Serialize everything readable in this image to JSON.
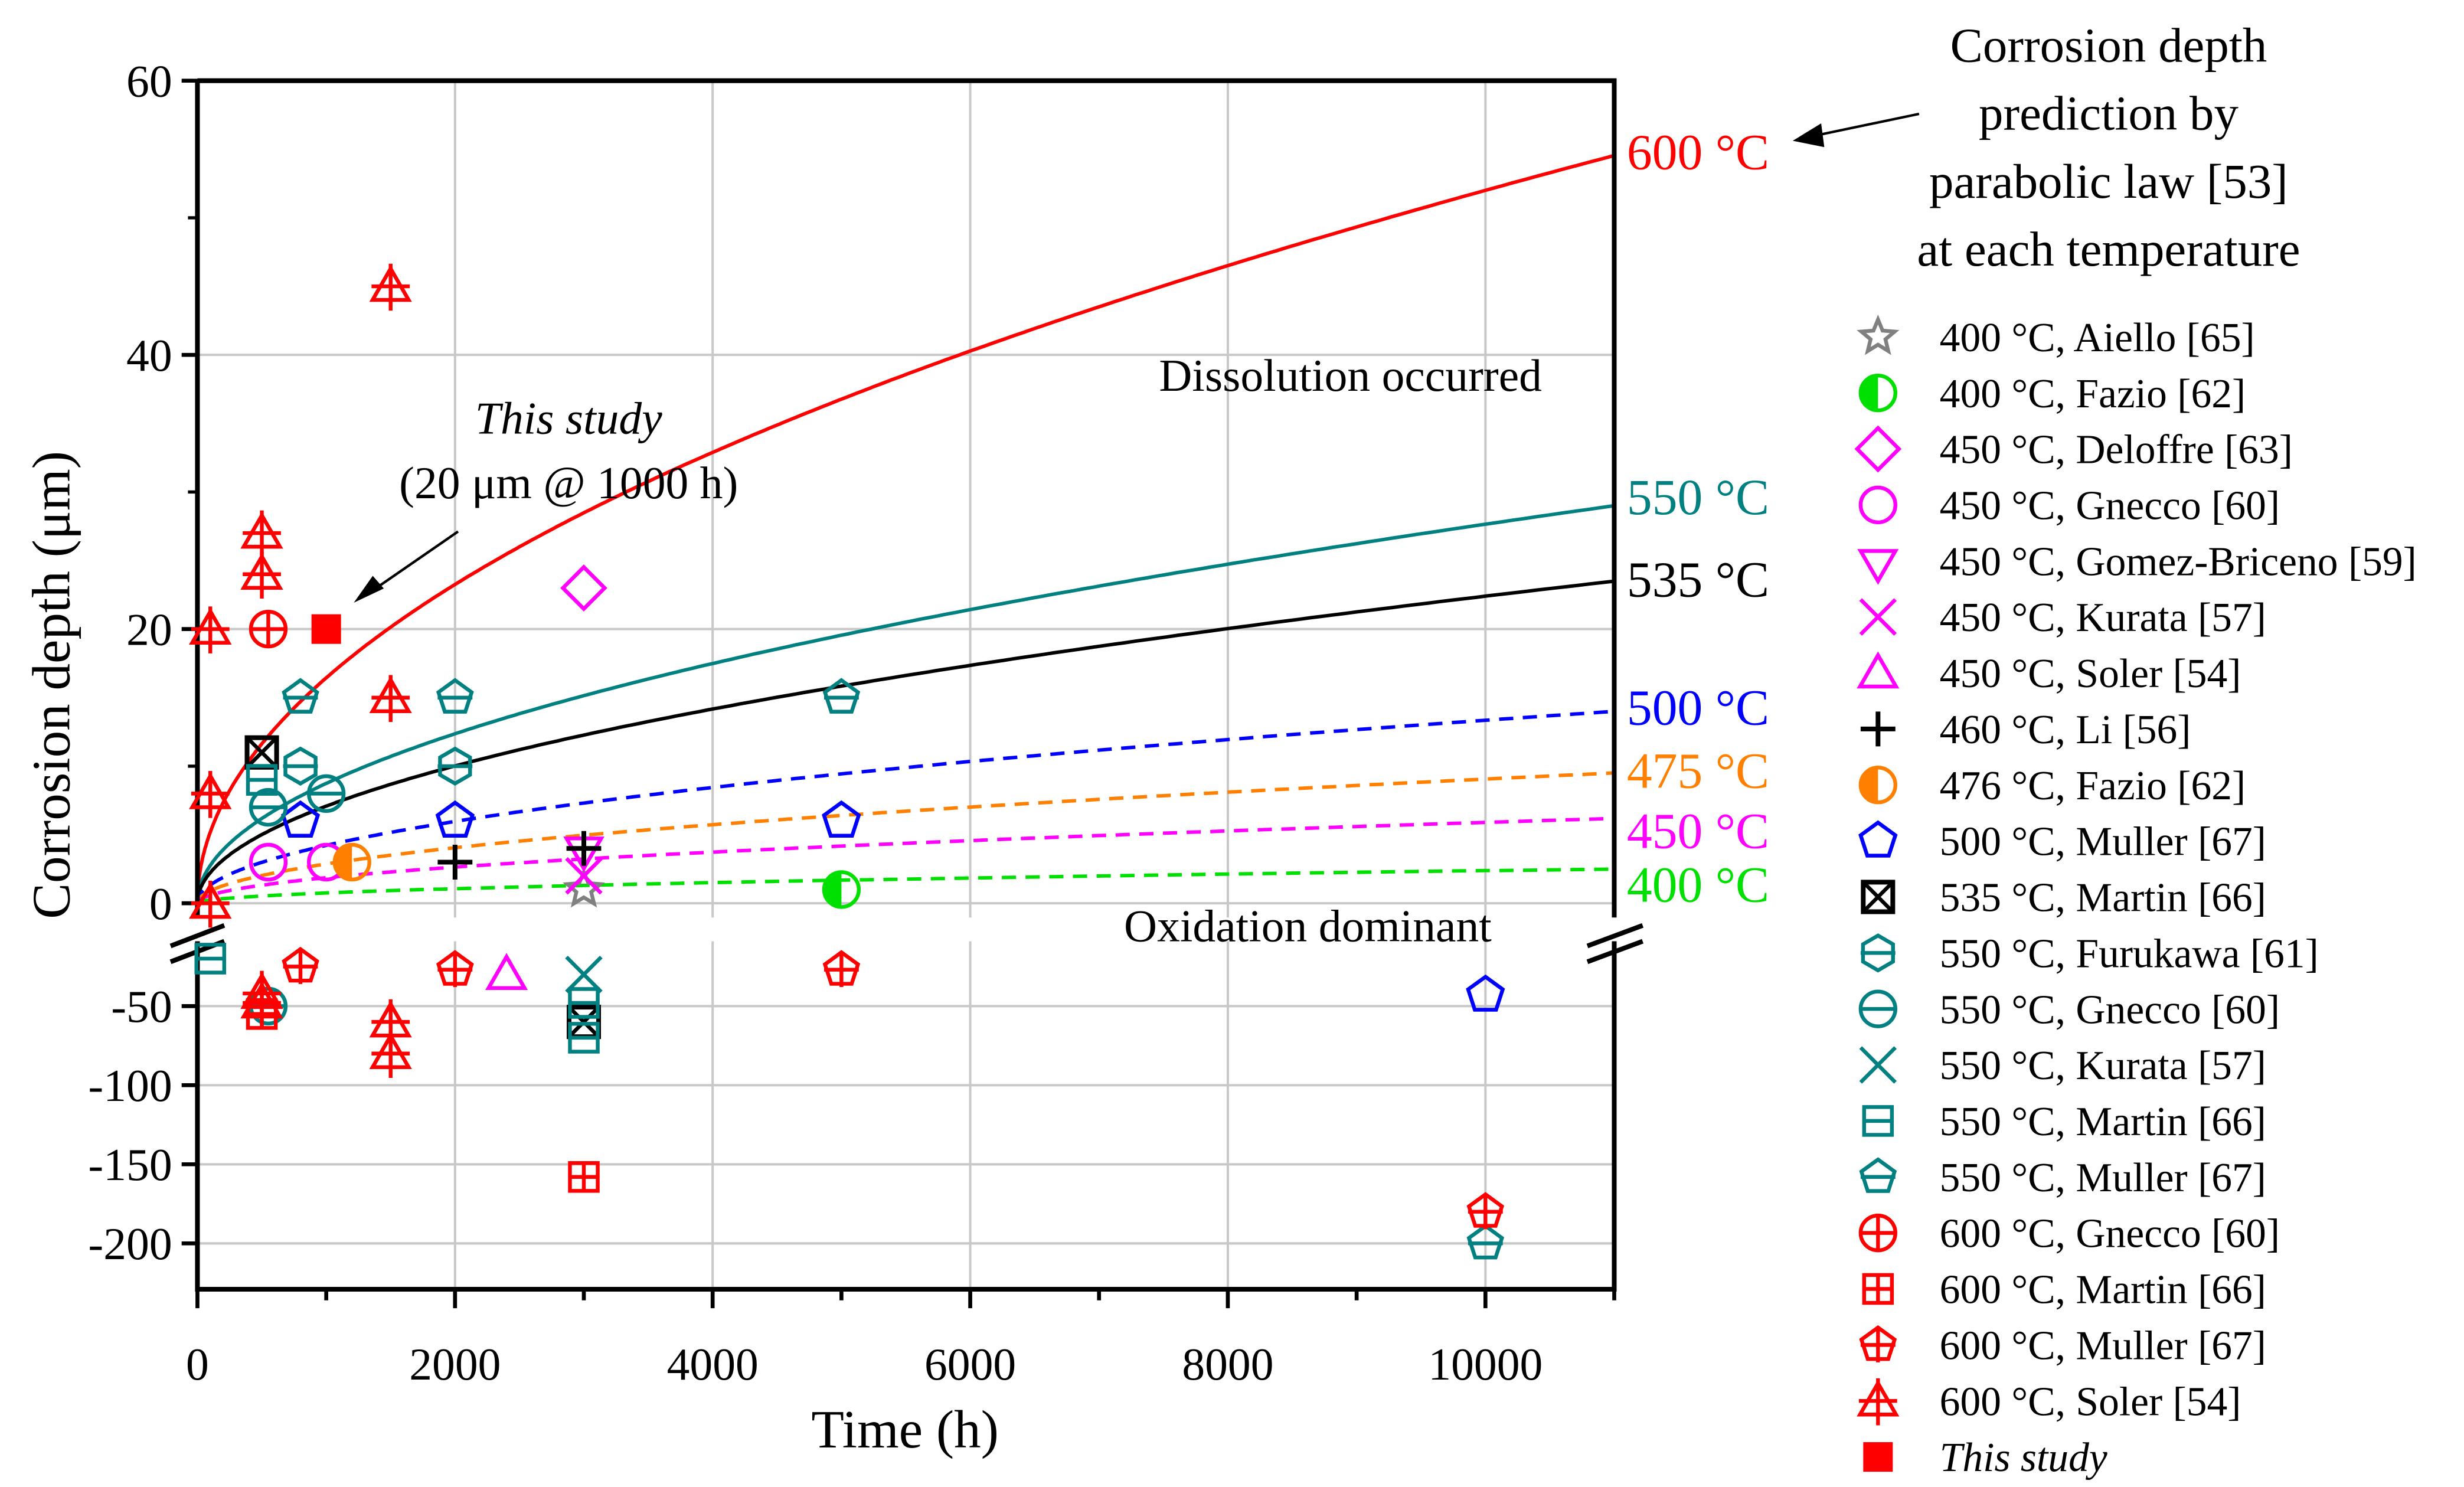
{
  "chart_data": {
    "type": "scatter",
    "xlabel": "Time (h)",
    "ylabel": "Corrosion depth (μm)",
    "xlim": [
      0,
      11000
    ],
    "xticks": [
      "0",
      "2000",
      "4000",
      "6000",
      "8000",
      "10000"
    ],
    "ylim_upper": [
      0,
      60
    ],
    "yticks_upper": [
      "0",
      "20",
      "40",
      "60"
    ],
    "ylim_lower": [
      -228,
      -9
    ],
    "yticks_lower": [
      "-50",
      "-100",
      "-150",
      "-200"
    ],
    "grid": true,
    "legend_placement": "right",
    "prediction_title": [
      "Corrosion depth",
      "prediction by",
      "parabolic law [53]",
      "at each temperature"
    ],
    "curves": [
      {
        "label": "600 °C",
        "k": 0.52,
        "color": "#ff0000",
        "dashed": false
      },
      {
        "label": "550 °C",
        "k": 0.2765,
        "color": "#008080",
        "dashed": false
      },
      {
        "label": "535 °C",
        "k": 0.224,
        "color": "#000000",
        "dashed": false
      },
      {
        "label": "500 °C",
        "k": 0.1335,
        "color": "#0000ff",
        "dashed": true
      },
      {
        "label": "475 °C",
        "k": 0.0906,
        "color": "#ff8000",
        "dashed": true
      },
      {
        "label": "450 °C",
        "k": 0.059,
        "color": "#ff00ff",
        "dashed": true
      },
      {
        "label": "400 °C",
        "k": 0.0238,
        "color": "#00e000",
        "dashed": true
      }
    ],
    "series": [
      {
        "name": "400 °C, Aiello [65]",
        "marker": "star",
        "color": "#808080",
        "points": [
          [
            3000,
            1
          ]
        ]
      },
      {
        "name": "400 °C, Fazio [62]",
        "marker": "half-circle",
        "color": "#00e000",
        "points": [
          [
            5000,
            1
          ]
        ]
      },
      {
        "name": "450 °C, Deloffre [63]",
        "marker": "diamond",
        "color": "#ff00ff",
        "points": [
          [
            3000,
            23
          ]
        ]
      },
      {
        "name": "450 °C, Gnecco [60]",
        "marker": "circle",
        "color": "#ff00ff",
        "points": [
          [
            550,
            3
          ],
          [
            1000,
            3
          ]
        ]
      },
      {
        "name": "450 °C, Gomez-Briceno [59]",
        "marker": "triangle-down",
        "color": "#ff00ff",
        "points": [
          [
            3000,
            4
          ]
        ]
      },
      {
        "name": "450 °C, Kurata [57]",
        "marker": "x",
        "color": "#ff00ff",
        "points": [
          [
            3000,
            2
          ]
        ]
      },
      {
        "name": "450 °C, Soler [54]",
        "marker": "triangle-up",
        "color": "#ff00ff",
        "points": [
          [
            2400,
            -30
          ]
        ]
      },
      {
        "name": "460 °C, Li [56]",
        "marker": "plus",
        "color": "#000000",
        "points": [
          [
            2000,
            3
          ],
          [
            3000,
            4
          ]
        ]
      },
      {
        "name": "476 °C, Fazio [62]",
        "marker": "half-circle",
        "color": "#ff8000",
        "points": [
          [
            1200,
            3
          ]
        ]
      },
      {
        "name": "500 °C, Muller [67]",
        "marker": "pentagon",
        "color": "#0000ff",
        "points": [
          [
            800,
            6
          ],
          [
            2000,
            6
          ],
          [
            5000,
            6
          ],
          [
            10000,
            -43
          ]
        ]
      },
      {
        "name": "535 °C, Martin [66]",
        "marker": "square-x",
        "color": "#000000",
        "points": [
          [
            500,
            11
          ],
          [
            3000,
            -60
          ]
        ]
      },
      {
        "name": "550 °C, Furukawa [61]",
        "marker": "hexagon-minus",
        "color": "#008080",
        "points": [
          [
            800,
            10
          ],
          [
            2000,
            10
          ]
        ]
      },
      {
        "name": "550 °C, Gnecco [60]",
        "marker": "circle-minus",
        "color": "#008080",
        "points": [
          [
            550,
            7
          ],
          [
            1000,
            8
          ],
          [
            550,
            -50
          ]
        ]
      },
      {
        "name": "550 °C, Kurata [57]",
        "marker": "x",
        "color": "#008080",
        "points": [
          [
            3000,
            -30
          ]
        ]
      },
      {
        "name": "550 °C, Martin [66]",
        "marker": "square-minus",
        "color": "#008080",
        "points": [
          [
            500,
            9
          ],
          [
            100,
            -20
          ],
          [
            3000,
            -48
          ],
          [
            3000,
            -70
          ]
        ]
      },
      {
        "name": "550 °C, Muller [67]",
        "marker": "pentagon-minus",
        "color": "#008080",
        "points": [
          [
            800,
            15
          ],
          [
            2000,
            15
          ],
          [
            5000,
            15
          ],
          [
            10000,
            -200
          ]
        ]
      },
      {
        "name": "600 °C, Gnecco [60]",
        "marker": "circle-plus",
        "color": "#ff0000",
        "points": [
          [
            550,
            20
          ]
        ]
      },
      {
        "name": "600 °C, Martin [66]",
        "marker": "square-plus",
        "color": "#ff0000",
        "points": [
          [
            500,
            -55
          ],
          [
            3000,
            -158
          ]
        ]
      },
      {
        "name": "600 °C, Muller [67]",
        "marker": "pentagon-plus",
        "color": "#ff0000",
        "points": [
          [
            800,
            -25
          ],
          [
            2000,
            -27
          ],
          [
            5000,
            -27
          ],
          [
            10000,
            -180
          ]
        ]
      },
      {
        "name": "600 °C, Soler [54]",
        "marker": "triangle-plus",
        "color": "#ff0000",
        "points": [
          [
            100,
            20
          ],
          [
            100,
            8
          ],
          [
            100,
            0
          ],
          [
            500,
            27
          ],
          [
            500,
            24
          ],
          [
            1500,
            45
          ],
          [
            1500,
            15
          ],
          [
            500,
            -42
          ],
          [
            500,
            -48
          ],
          [
            1500,
            -60
          ],
          [
            1500,
            -80
          ]
        ]
      },
      {
        "name": "This study",
        "marker": "filled-square",
        "color": "#ff0000",
        "points": [
          [
            1000,
            20
          ]
        ]
      }
    ],
    "annotations": {
      "this_study": "This study",
      "this_study_value": "(20 μm @ 1000 h)",
      "dissolution": "Dissolution occurred",
      "oxidation": "Oxidation dominant"
    }
  }
}
